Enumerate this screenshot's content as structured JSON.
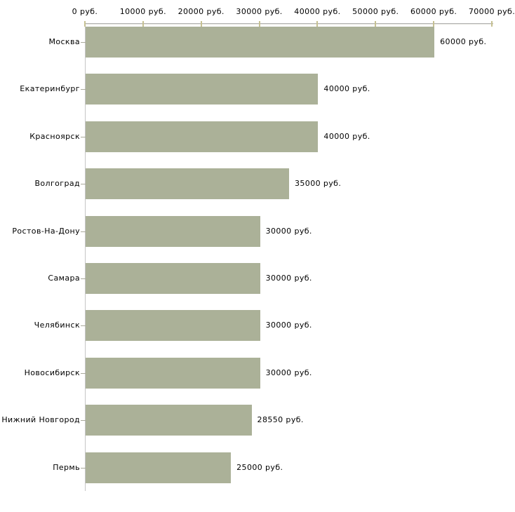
{
  "chart_data": {
    "type": "bar",
    "orientation": "horizontal",
    "title": "",
    "categories": [
      "Москва",
      "Екатеринбург",
      "Красноярск",
      "Волгоград",
      "Ростов-На-Дону",
      "Самара",
      "Челябинск",
      "Новосибирск",
      "Нижний Новгород",
      "Пермь"
    ],
    "values": [
      60000,
      40000,
      40000,
      35000,
      30000,
      30000,
      30000,
      30000,
      28550,
      25000
    ],
    "value_labels": [
      "60000 руб.",
      "40000 руб.",
      "40000 руб.",
      "35000 руб.",
      "30000 руб.",
      "30000 руб.",
      "30000 руб.",
      "30000 руб.",
      "28550 руб.",
      "25000 руб."
    ],
    "unit": "руб.",
    "x_axis": {
      "position": "top",
      "range": [
        0,
        70000
      ],
      "ticks": [
        0,
        10000,
        20000,
        30000,
        40000,
        50000,
        60000,
        70000
      ],
      "tick_labels": [
        "0 руб.",
        "10000 руб.",
        "20000 руб.",
        "30000 руб.",
        "40000 руб.",
        "50000 руб.",
        "60000 руб.",
        "70000 руб."
      ]
    },
    "grid": false,
    "legend": false,
    "colors": {
      "bar": "#abb198",
      "axis_line_dark": "#b3b3b3",
      "axis_line_light": "#e3e3dc",
      "y_axis_line": "#c5c5c5",
      "tick": "#c6c192",
      "category_tick": "#a9a99b",
      "text": "#000000",
      "background": "#ffffff"
    }
  }
}
